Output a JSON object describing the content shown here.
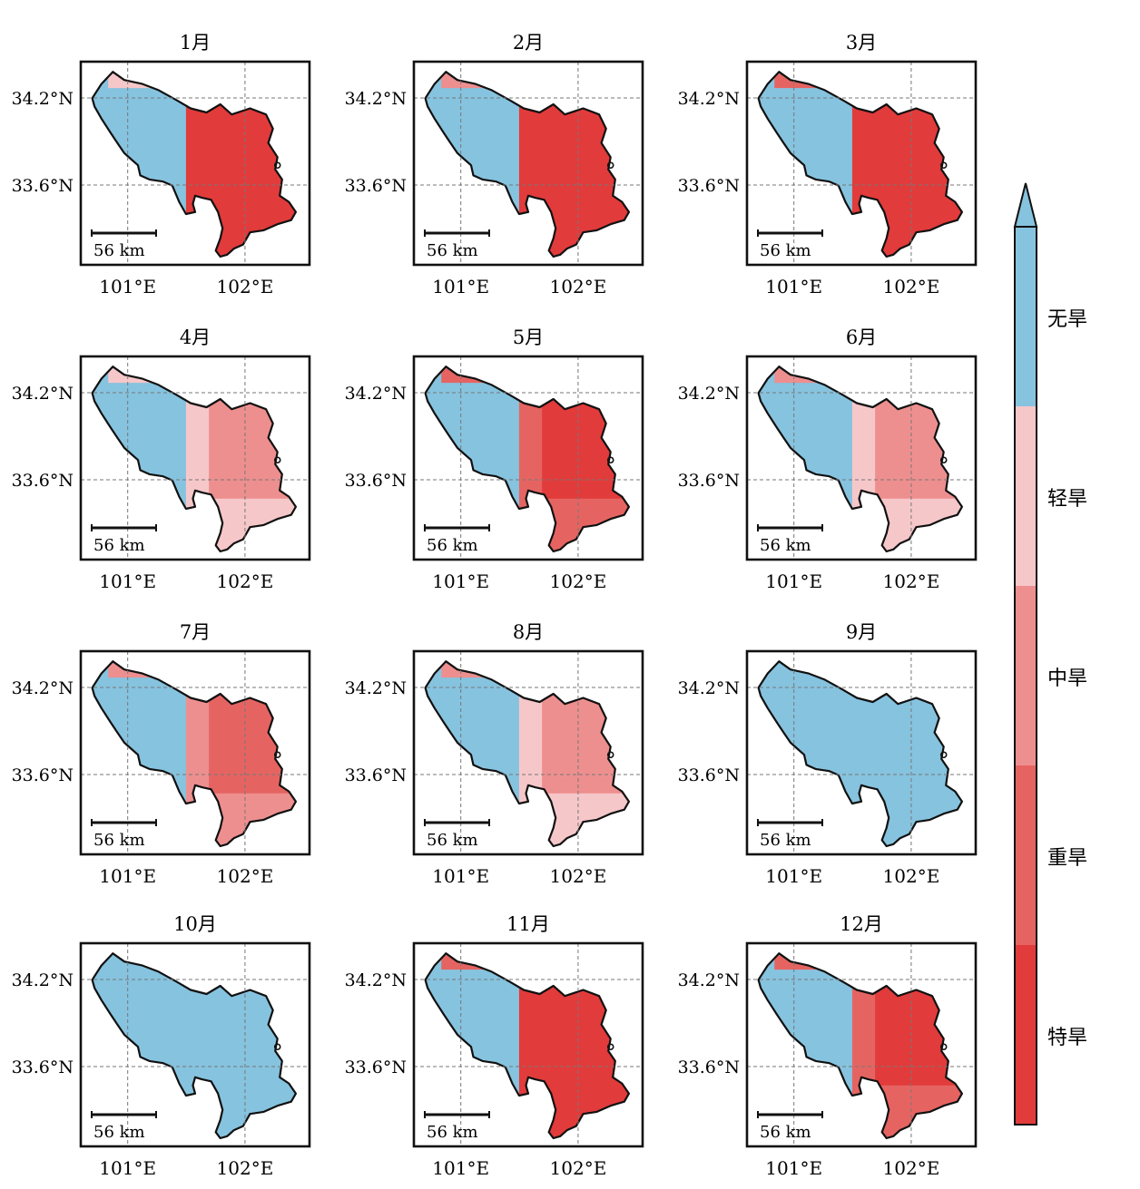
{
  "figure": {
    "months": [
      "1月",
      "2月",
      "3月",
      "4月",
      "5月",
      "6月",
      "7月",
      "8月",
      "9月",
      "10月",
      "11月",
      "12月"
    ],
    "lat_labels": [
      "34.2°N",
      "33.6°N"
    ],
    "lon_labels": [
      "101°E",
      "102°E"
    ],
    "scale_bar_label": "56 km"
  },
  "legend": {
    "classes": [
      {
        "label": "无旱",
        "color": "#86c3df"
      },
      {
        "label": "轻旱",
        "color": "#f6c7c9"
      },
      {
        "label": "中旱",
        "color": "#ee8f8f"
      },
      {
        "label": "重旱",
        "color": "#e56462"
      },
      {
        "label": "特旱",
        "color": "#e23b3b"
      }
    ],
    "extend": "top arrow"
  },
  "map_extent": {
    "lon": [
      100.6,
      102.55
    ],
    "lat": [
      33.05,
      34.45
    ]
  },
  "monthly_drought_pattern": [
    {
      "month": "1月",
      "west": "无旱",
      "north_rim": "轻旱",
      "east": "特旱",
      "south": "特旱"
    },
    {
      "month": "2月",
      "west": "无旱",
      "north_rim": "中旱",
      "east": "特旱",
      "south": "特旱"
    },
    {
      "month": "3月",
      "west": "无旱",
      "north_rim": "重旱",
      "east": "特旱",
      "south": "特旱"
    },
    {
      "month": "4月",
      "west": "无旱",
      "north_rim": "轻旱",
      "east": "中旱",
      "south": "轻旱"
    },
    {
      "month": "5月",
      "west": "无旱",
      "north_rim": "重旱",
      "east": "特旱",
      "south": "重旱"
    },
    {
      "month": "6月",
      "west": "无旱",
      "north_rim": "中旱",
      "east": "中旱",
      "south": "轻旱"
    },
    {
      "month": "7月",
      "west": "无旱",
      "north_rim": "中旱",
      "east": "重旱",
      "south": "中旱"
    },
    {
      "month": "8月",
      "west": "无旱",
      "north_rim": "中旱",
      "east": "中旱",
      "south": "轻旱"
    },
    {
      "month": "9月",
      "west": "无旱",
      "north_rim": "无旱",
      "east": "无旱",
      "south": "无旱"
    },
    {
      "month": "10月",
      "west": "无旱",
      "north_rim": "无旱",
      "east": "无旱",
      "south": "无旱"
    },
    {
      "month": "11月",
      "west": "无旱",
      "north_rim": "重旱",
      "east": "特旱",
      "south": "特旱"
    },
    {
      "month": "12月",
      "west": "无旱",
      "north_rim": "重旱",
      "east": "特旱",
      "south": "重旱"
    }
  ]
}
